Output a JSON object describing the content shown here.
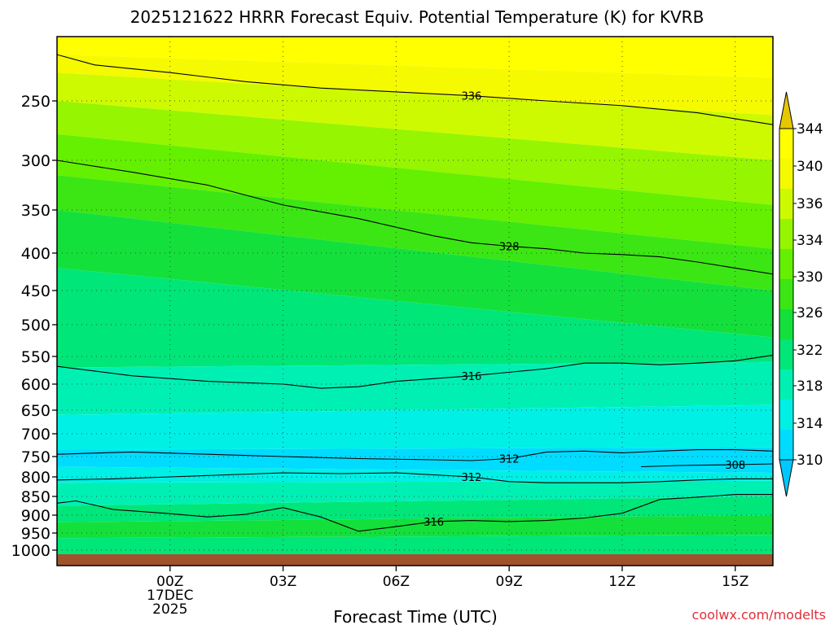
{
  "chart_data": {
    "type": "heatmap",
    "title": "2025121622 HRRR Forecast Equiv. Potential Temperature (K) for KVRB",
    "xlabel": "Forecast Time (UTC)",
    "ylabel": "",
    "x_range_hours": [
      -3,
      16
    ],
    "y_range_hpa": [
      1000,
      200
    ],
    "x_ticks": [
      {
        "hour": 0,
        "label": "00Z",
        "sublabel1": "17DEC",
        "sublabel2": "2025"
      },
      {
        "hour": 3,
        "label": "03Z"
      },
      {
        "hour": 6,
        "label": "06Z"
      },
      {
        "hour": 9,
        "label": "09Z"
      },
      {
        "hour": 12,
        "label": "12Z"
      },
      {
        "hour": 15,
        "label": "15Z"
      }
    ],
    "y_ticks": [
      {
        "p": 250,
        "label": "250"
      },
      {
        "p": 300,
        "label": "300"
      },
      {
        "p": 350,
        "label": "350"
      },
      {
        "p": 400,
        "label": "400"
      },
      {
        "p": 450,
        "label": "450"
      },
      {
        "p": 500,
        "label": "500"
      },
      {
        "p": 550,
        "label": "550"
      },
      {
        "p": 600,
        "label": "600"
      },
      {
        "p": 650,
        "label": "650"
      },
      {
        "p": 700,
        "label": "700"
      },
      {
        "p": 750,
        "label": "750"
      },
      {
        "p": 800,
        "label": "800"
      },
      {
        "p": 850,
        "label": "850"
      },
      {
        "p": 900,
        "label": "900"
      },
      {
        "p": 950,
        "label": "950"
      },
      {
        "p": 1000,
        "label": "1000"
      }
    ],
    "colorbar": {
      "levels": [
        310,
        314,
        318,
        322,
        326,
        330,
        334,
        336,
        340,
        344
      ],
      "labels": [
        "310",
        "314",
        "318",
        "322",
        "326",
        "330",
        "334",
        "336",
        "340",
        "344"
      ],
      "colors": [
        "#00dcff",
        "#00f0e6",
        "#00f0b4",
        "#00e678",
        "#14e03c",
        "#3ce614",
        "#64f000",
        "#96f500",
        "#cdfa00",
        "#f5fa00",
        "#ffff00"
      ],
      "under_color": "#00c8ff",
      "over_color": "#e6c800"
    },
    "contours": [
      {
        "value": 316,
        "label": "316",
        "points": [
          [
            -3,
            868
          ],
          [
            -2.5,
            862
          ],
          [
            -1.5,
            885
          ],
          [
            0,
            896
          ],
          [
            1,
            905
          ],
          [
            2,
            898
          ],
          [
            3,
            880
          ],
          [
            4,
            905
          ],
          [
            5,
            945
          ],
          [
            6,
            932
          ],
          [
            7,
            918
          ],
          [
            8,
            915
          ],
          [
            9,
            918
          ],
          [
            10,
            915
          ],
          [
            11,
            908
          ],
          [
            12,
            895
          ],
          [
            13,
            858
          ],
          [
            14,
            852
          ],
          [
            15,
            845
          ],
          [
            16,
            845
          ]
        ]
      },
      {
        "value": 312,
        "label": "312",
        "points": [
          [
            -3,
            808
          ],
          [
            -1.5,
            805
          ],
          [
            0,
            800
          ],
          [
            1.5,
            795
          ],
          [
            3,
            790
          ],
          [
            4.5,
            792
          ],
          [
            6,
            790
          ],
          [
            7,
            795
          ],
          [
            8,
            800
          ],
          [
            9,
            812
          ],
          [
            10,
            815
          ],
          [
            11,
            815
          ],
          [
            12,
            815
          ],
          [
            13,
            812
          ],
          [
            14,
            808
          ],
          [
            15,
            805
          ],
          [
            16,
            805
          ]
        ]
      },
      {
        "value": 308,
        "label": "308",
        "points": [
          [
            12.5,
            775
          ],
          [
            13.5,
            772
          ],
          [
            15,
            770
          ],
          [
            16,
            768
          ]
        ]
      },
      {
        "value": 312,
        "label": "312",
        "points": [
          [
            -3,
            745
          ],
          [
            -1,
            740
          ],
          [
            1,
            745
          ],
          [
            3,
            750
          ],
          [
            5,
            755
          ],
          [
            7,
            758
          ],
          [
            8,
            760
          ],
          [
            9,
            755
          ],
          [
            10,
            740
          ],
          [
            11,
            738
          ],
          [
            12,
            742
          ],
          [
            13,
            738
          ],
          [
            14,
            735
          ],
          [
            15,
            735
          ],
          [
            16,
            738
          ]
        ]
      },
      {
        "value": 316,
        "label": "316",
        "points": [
          [
            -3,
            568
          ],
          [
            -1,
            585
          ],
          [
            1,
            595
          ],
          [
            3,
            600
          ],
          [
            4,
            608
          ],
          [
            5,
            605
          ],
          [
            6,
            595
          ],
          [
            8,
            585
          ],
          [
            10,
            572
          ],
          [
            11,
            562
          ],
          [
            12,
            562
          ],
          [
            13,
            565
          ],
          [
            14,
            562
          ],
          [
            15,
            558
          ],
          [
            16,
            548
          ]
        ]
      },
      {
        "value": 328,
        "label": "328",
        "points": [
          [
            -3,
            300
          ],
          [
            -1,
            312
          ],
          [
            1,
            325
          ],
          [
            3,
            345
          ],
          [
            5,
            360
          ],
          [
            7,
            380
          ],
          [
            8,
            388
          ],
          [
            9,
            392
          ],
          [
            10,
            395
          ],
          [
            11,
            400
          ],
          [
            12,
            402
          ],
          [
            13,
            405
          ],
          [
            14,
            412
          ],
          [
            15,
            420
          ],
          [
            16,
            428
          ]
        ]
      },
      {
        "value": 336,
        "label": "336",
        "points": [
          [
            -3,
            214
          ],
          [
            -2,
            222
          ],
          [
            0,
            228
          ],
          [
            2,
            235
          ],
          [
            4,
            240
          ],
          [
            6,
            243
          ],
          [
            8,
            246
          ],
          [
            10,
            250
          ],
          [
            12,
            254
          ],
          [
            14,
            260
          ],
          [
            15,
            265
          ],
          [
            16,
            270
          ]
        ]
      }
    ],
    "surface_band": {
      "color": "#a0522d"
    },
    "credit": "coolwx.com/modelts"
  }
}
